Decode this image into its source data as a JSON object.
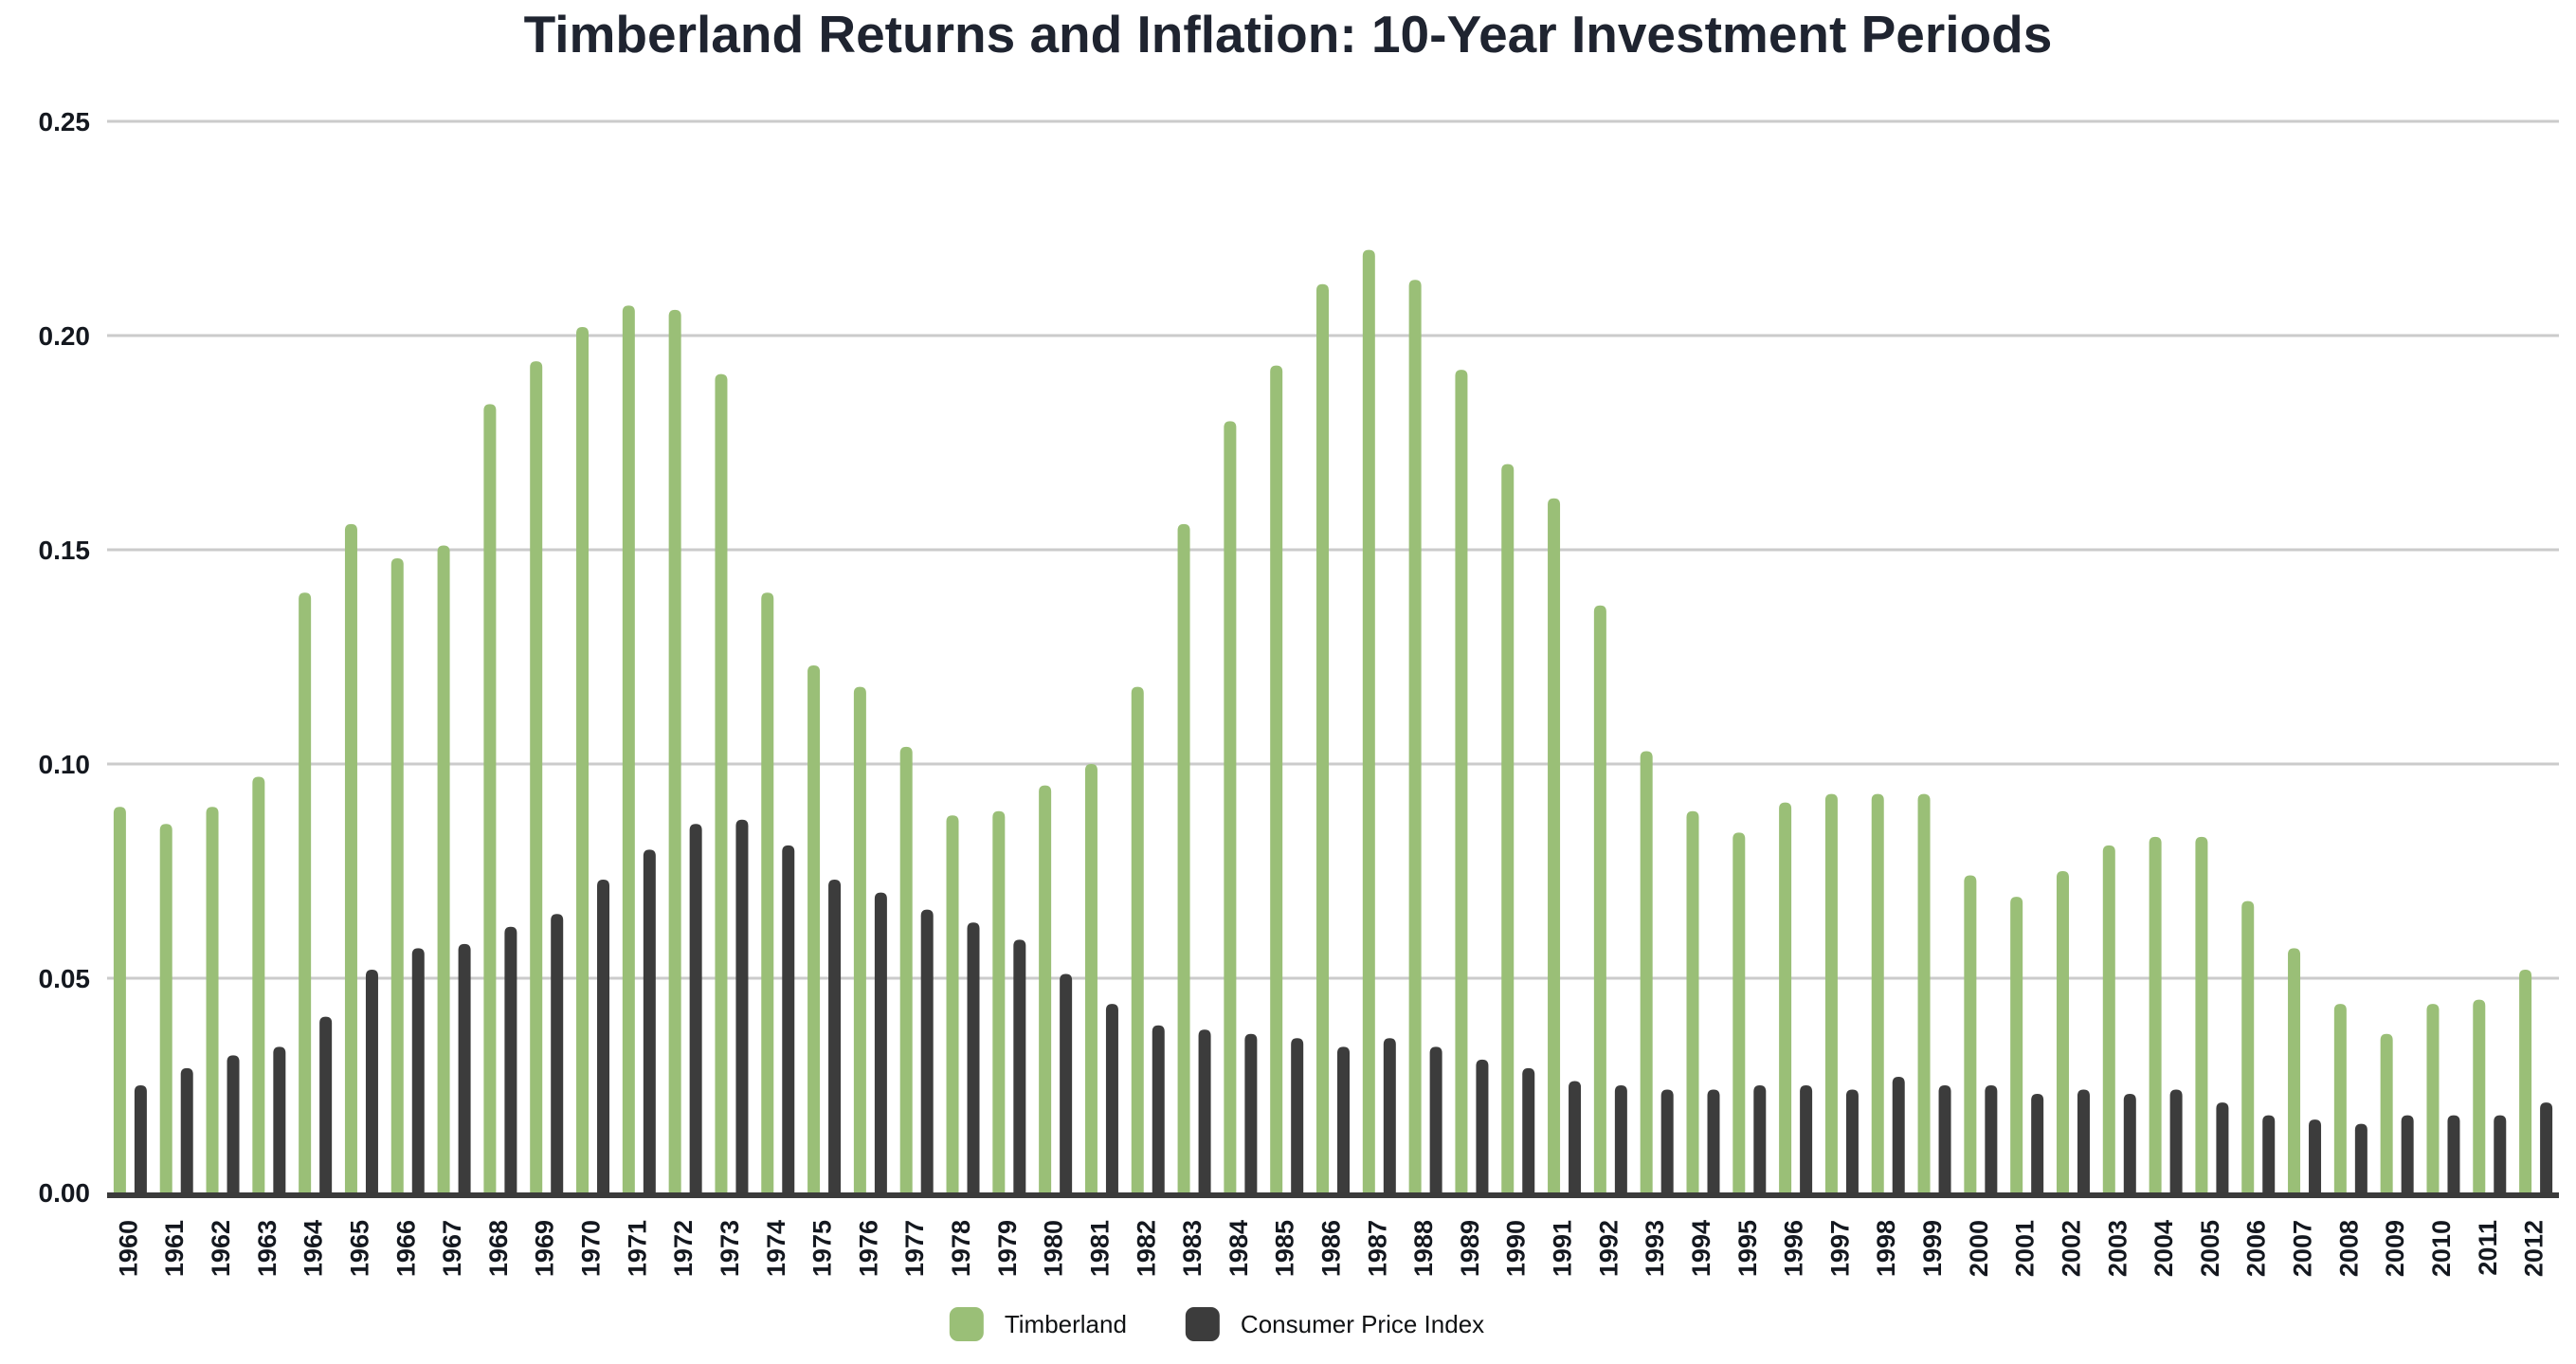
{
  "page": {
    "background": "#FFFFFF"
  },
  "styles": {
    "grid_color": "#CBCBCB",
    "axis_line_color": "#3B3B3B",
    "tick_label_color": "#14181F",
    "title_color": "#1F2430",
    "timberland_color": "#9ABF77",
    "cpi_color": "#3C3C3C"
  },
  "chart_data": {
    "type": "bar",
    "title": "Timberland Returns and Inflation: 10-Year Investment Periods",
    "xlabel": "",
    "ylabel": "",
    "grid": "horizontal",
    "legend_position": "bottom",
    "ylim": [
      0,
      0.25
    ],
    "y_ticks": [
      0,
      0.05,
      0.1,
      0.15,
      0.2,
      0.25
    ],
    "y_tick_labels": [
      "0.00",
      "0.05",
      "0.10",
      "0.15",
      "0.20",
      "0.25"
    ],
    "categories": [
      "1960",
      "1961",
      "1962",
      "1963",
      "1964",
      "1965",
      "1966",
      "1967",
      "1968",
      "1969",
      "1970",
      "1971",
      "1972",
      "1973",
      "1974",
      "1975",
      "1976",
      "1977",
      "1978",
      "1979",
      "1980",
      "1981",
      "1982",
      "1983",
      "1984",
      "1985",
      "1986",
      "1987",
      "1988",
      "1989",
      "1990",
      "1991",
      "1992",
      "1993",
      "1994",
      "1995",
      "1996",
      "1997",
      "1998",
      "1999",
      "2000",
      "2001",
      "2002",
      "2003",
      "2004",
      "2005",
      "2006",
      "2007",
      "2008",
      "2009",
      "2010",
      "2011",
      "2012"
    ],
    "series": [
      {
        "name": "Timberland",
        "color": "#9ABF77",
        "values": [
          0.09,
          0.086,
          0.09,
          0.097,
          0.14,
          0.156,
          0.148,
          0.151,
          0.184,
          0.194,
          0.202,
          0.207,
          0.206,
          0.191,
          0.14,
          0.123,
          0.118,
          0.104,
          0.088,
          0.089,
          0.095,
          0.1,
          0.118,
          0.156,
          0.18,
          0.193,
          0.212,
          0.22,
          0.213,
          0.192,
          0.17,
          0.162,
          0.137,
          0.103,
          0.089,
          0.084,
          0.091,
          0.093,
          0.093,
          0.093,
          0.074,
          0.069,
          0.075,
          0.081,
          0.083,
          0.083,
          0.068,
          0.057,
          0.044,
          0.037,
          0.044,
          0.045,
          0.052
        ]
      },
      {
        "name": "Consumer Price Index",
        "color": "#3C3C3C",
        "values": [
          0.025,
          0.029,
          0.032,
          0.034,
          0.041,
          0.052,
          0.057,
          0.058,
          0.062,
          0.065,
          0.073,
          0.08,
          0.086,
          0.087,
          0.081,
          0.073,
          0.07,
          0.066,
          0.063,
          0.059,
          0.051,
          0.044,
          0.039,
          0.038,
          0.037,
          0.036,
          0.034,
          0.036,
          0.034,
          0.031,
          0.029,
          0.026,
          0.025,
          0.024,
          0.024,
          0.025,
          0.025,
          0.024,
          0.027,
          0.025,
          0.025,
          0.023,
          0.024,
          0.023,
          0.024,
          0.021,
          0.018,
          0.017,
          0.016,
          0.018,
          0.018,
          0.018,
          0.021
        ]
      }
    ]
  }
}
